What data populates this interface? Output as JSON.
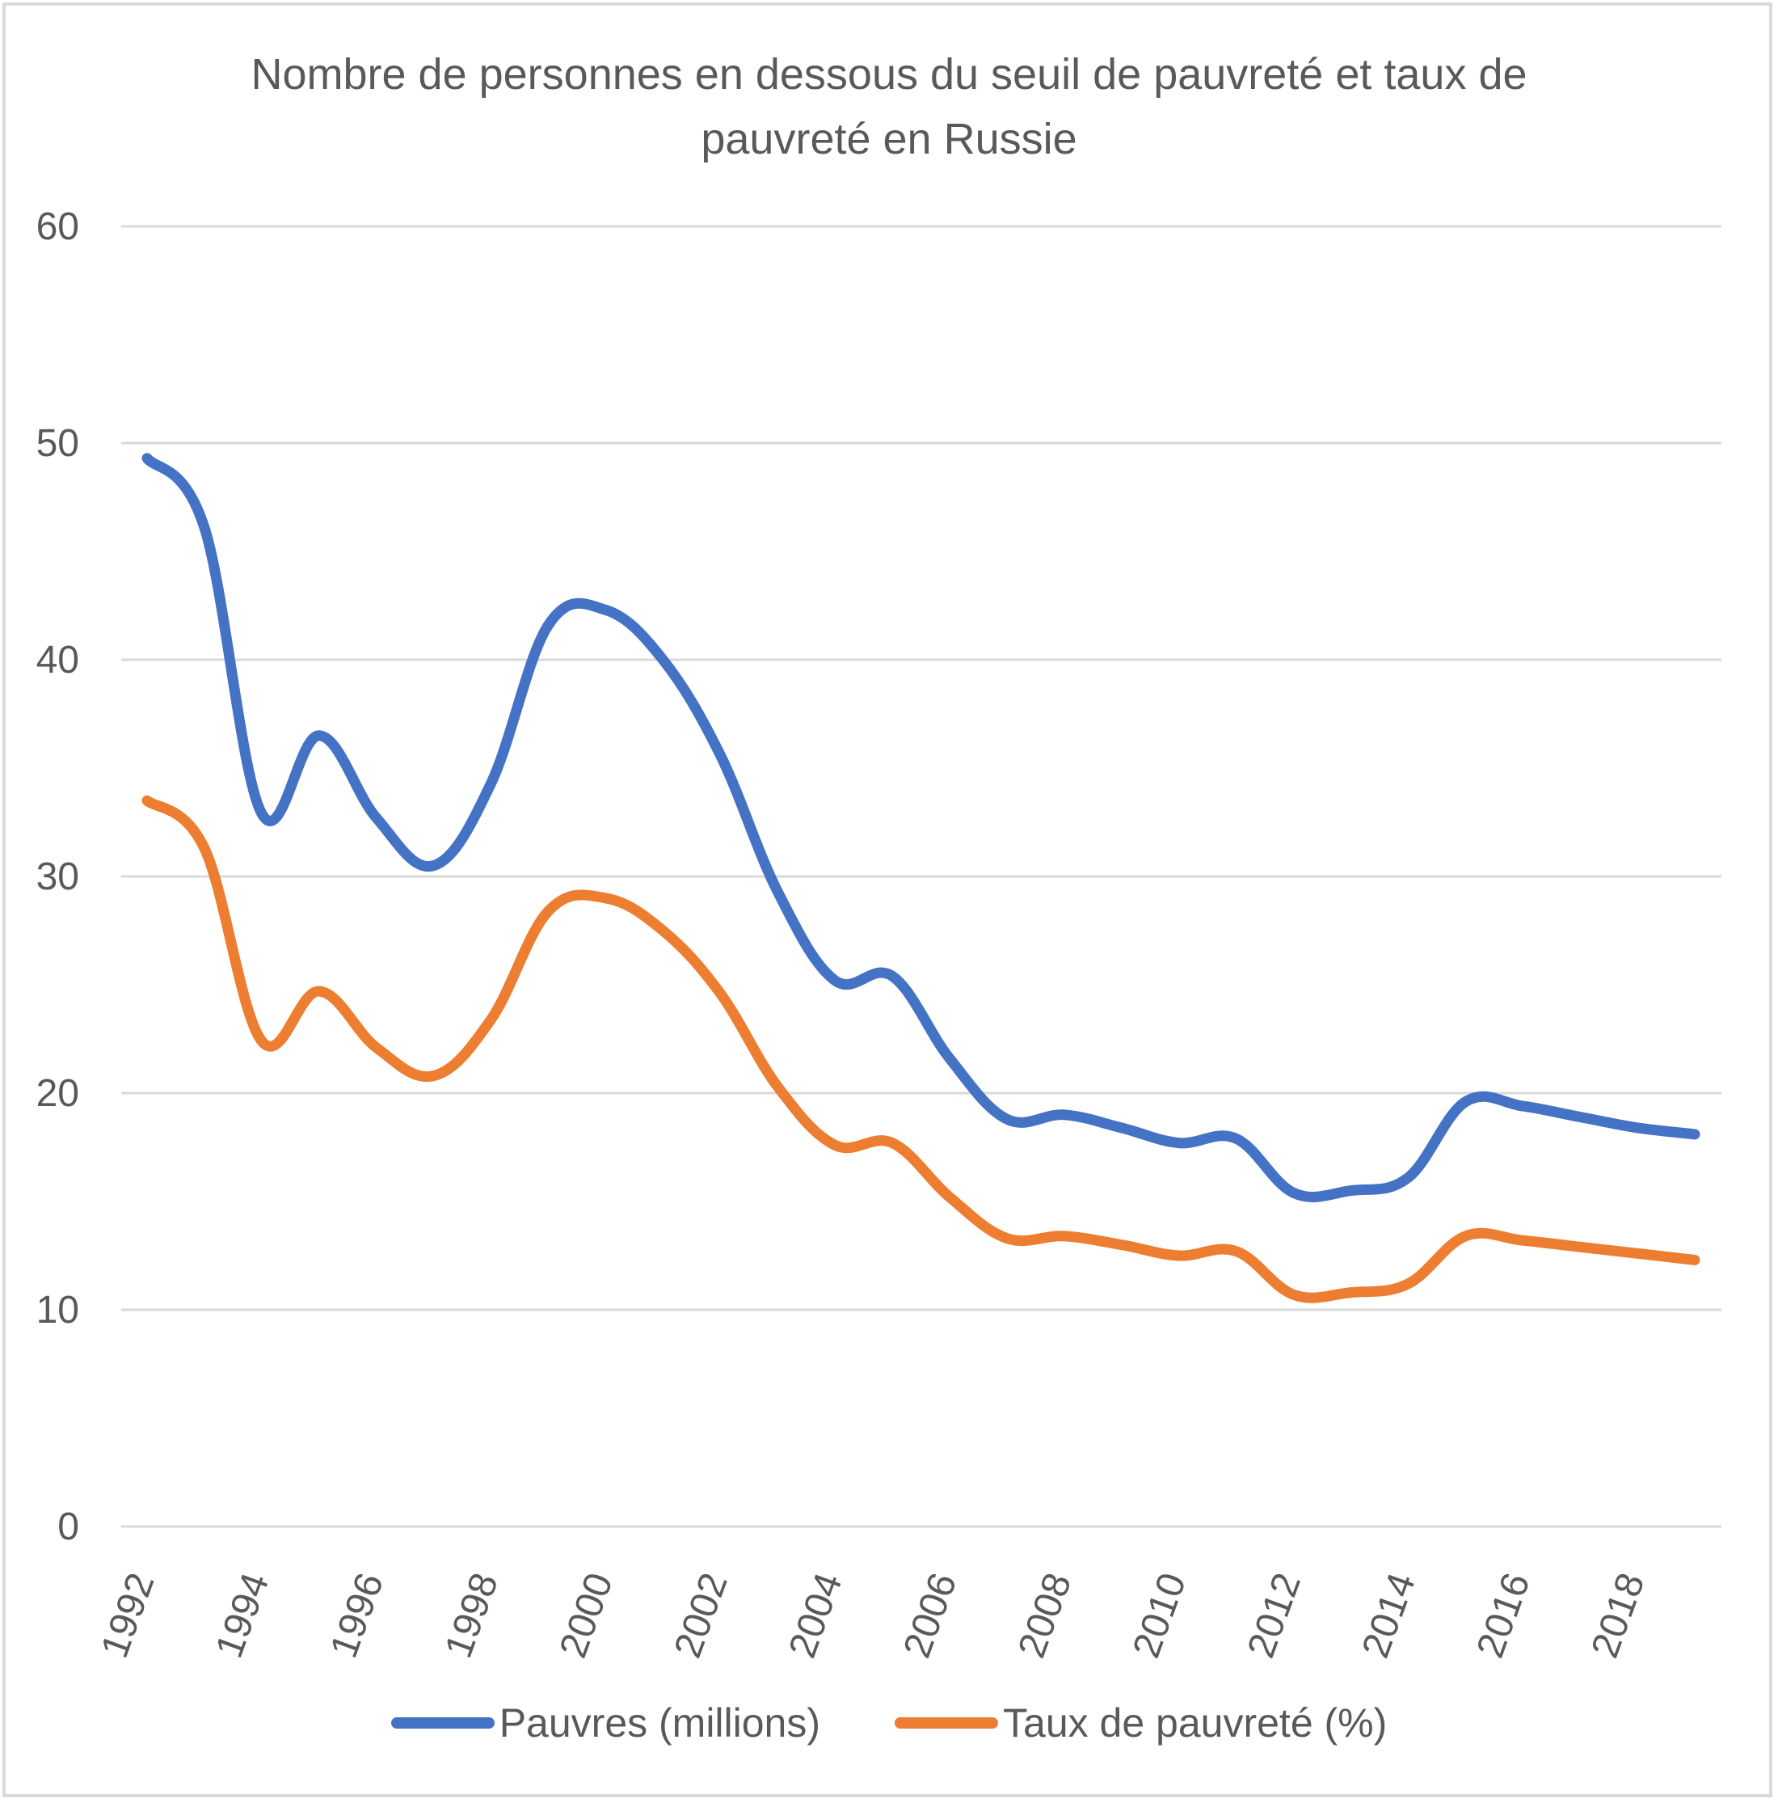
{
  "chart_data": {
    "type": "line",
    "title": "Nombre de personnes en dessous du seuil de pauvreté et taux de pauvreté en Russie",
    "xlabel": "",
    "ylabel": "",
    "ylim": [
      0,
      60
    ],
    "y_ticks": [
      "0",
      "10",
      "20",
      "30",
      "40",
      "50",
      "60"
    ],
    "x_tick_labels": [
      "1992",
      "1994",
      "1996",
      "1998",
      "2000",
      "2002",
      "2004",
      "2006",
      "2008",
      "2010",
      "2012",
      "2014",
      "2016",
      "2018"
    ],
    "x": [
      1992,
      1993,
      1994,
      1995,
      1996,
      1997,
      1998,
      1999,
      2000,
      2001,
      2002,
      2003,
      2004,
      2005,
      2006,
      2007,
      2008,
      2009,
      2010,
      2011,
      2012,
      2013,
      2014,
      2015,
      2016,
      2017,
      2018,
      2019
    ],
    "grid": true,
    "legend_position": "bottom",
    "series": [
      {
        "name": "Pauvres (millions)",
        "color": "#4472c4",
        "values": [
          49.3,
          46.1,
          32.9,
          36.5,
          32.7,
          30.5,
          34.3,
          41.6,
          42.3,
          40.0,
          35.6,
          29.3,
          25.2,
          25.4,
          21.6,
          18.8,
          19.0,
          18.4,
          17.7,
          17.9,
          15.4,
          15.5,
          16.1,
          19.6,
          19.4,
          18.9,
          18.4,
          18.1
        ],
        "label": "Pauvres (millions)"
      },
      {
        "name": "Taux de pauvreté (%)",
        "color": "#ed7d31",
        "values": [
          33.5,
          31.3,
          22.4,
          24.7,
          22.1,
          20.8,
          23.4,
          28.4,
          29.0,
          27.5,
          24.6,
          20.3,
          17.6,
          17.7,
          15.2,
          13.3,
          13.4,
          13.0,
          12.5,
          12.7,
          10.7,
          10.8,
          11.2,
          13.4,
          13.2,
          12.9,
          12.6,
          12.3
        ],
        "label": "Taux de pauvreté (%)"
      }
    ]
  }
}
